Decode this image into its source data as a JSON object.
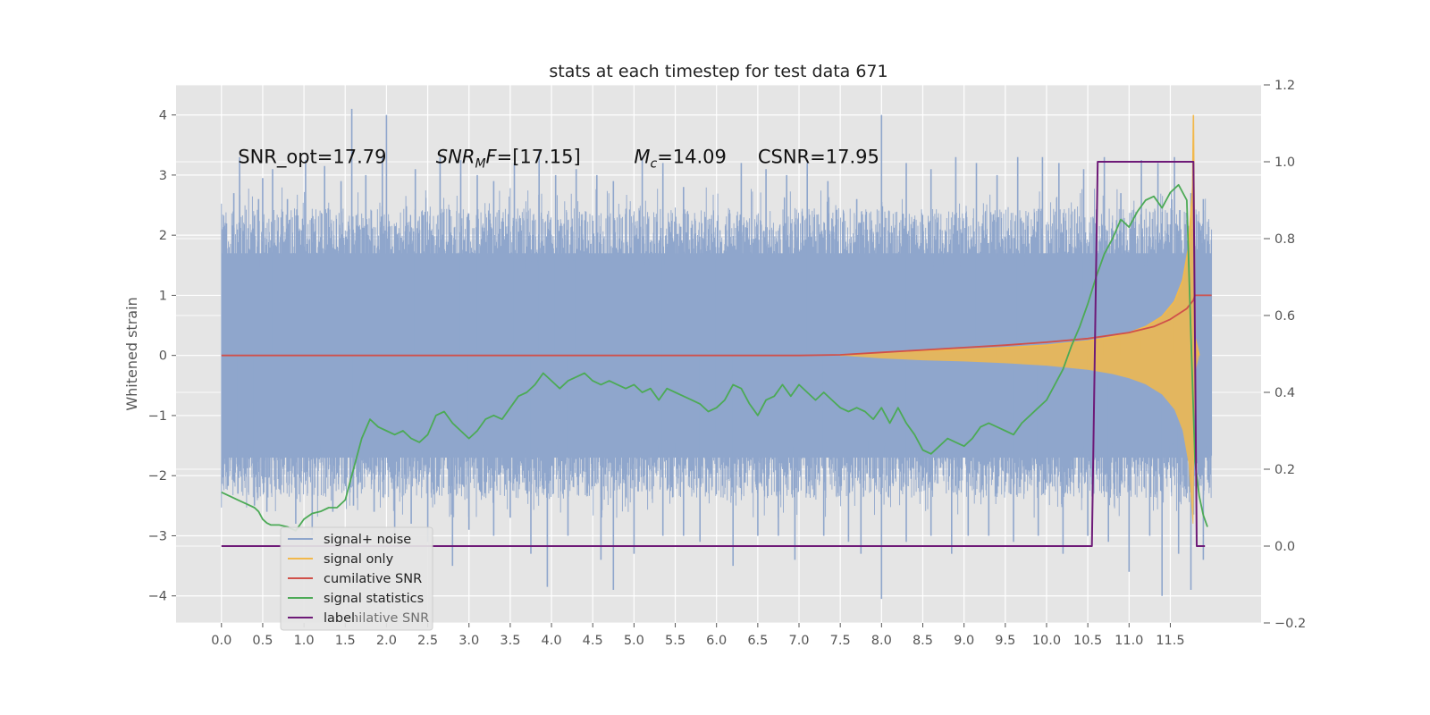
{
  "chart_data": {
    "type": "line",
    "title": "stats at each timestep for test data 671",
    "ylabel": "Whitened strain",
    "ylabel_right": "",
    "xlim": [
      -0.55,
      12.6
    ],
    "ylim": [
      -4.45,
      4.5
    ],
    "ylim_right": [
      -0.2,
      1.2
    ],
    "grid": true,
    "x_ticks": [
      0.0,
      0.5,
      1.0,
      1.5,
      2.0,
      2.5,
      3.0,
      3.5,
      4.0,
      4.5,
      5.0,
      5.5,
      6.0,
      6.5,
      7.0,
      7.5,
      8.0,
      8.5,
      9.0,
      9.5,
      10.0,
      10.5,
      11.0,
      11.5
    ],
    "x_tick_labels": [
      "0.0",
      "0.5",
      "1.0",
      "1.5",
      "2.0",
      "2.5",
      "3.0",
      "3.5",
      "4.0",
      "4.5",
      "5.0",
      "5.5",
      "6.0",
      "6.5",
      "7.0",
      "7.5",
      "8.0",
      "8.5",
      "9.0",
      "9.5",
      "10.0",
      "10.5",
      "11.0",
      "11.5"
    ],
    "y_ticks": [
      -4,
      -3,
      -2,
      -1,
      0,
      1,
      2,
      3,
      4
    ],
    "y_tick_labels": [
      "−4",
      "−3",
      "−2",
      "−1",
      "0",
      "1",
      "2",
      "3",
      "4"
    ],
    "y_right_ticks": [
      -0.2,
      0.0,
      0.2,
      0.4,
      0.6,
      0.8,
      1.0,
      1.2
    ],
    "y_right_tick_labels": [
      "−0.2",
      "0.0",
      "0.2",
      "0.4",
      "0.6",
      "0.8",
      "1.0",
      "1.2"
    ],
    "annotations": [
      {
        "text": "SNR_opt=17.79",
        "x": 0.2,
        "y": 3.3
      },
      {
        "text_main": "SNR",
        "text_sub": "M",
        "text_rest": "F=[17.15]",
        "x": 2.6,
        "y": 3.3
      },
      {
        "text_main": "M",
        "text_sub": "c",
        "text_rest": "=14.09",
        "x": 5.0,
        "y": 3.3
      },
      {
        "text": "CSNR=17.95",
        "x": 6.5,
        "y": 3.3
      }
    ],
    "legend": {
      "placement": "lower-left",
      "entries": [
        "signal+ noise",
        "signal only",
        "cumilative SNR",
        "signal statistics",
        "label"
      ],
      "ghost_text": "cumilative SNR"
    },
    "series": [
      {
        "name": "signal+ noise",
        "axis": "left",
        "color": "#8fa6cc",
        "style": "noise",
        "x_range": [
          0.0,
          12.0
        ],
        "typical_band": [
          -2.0,
          2.0
        ],
        "peaks": [
          [
            0.05,
            2.1
          ],
          [
            0.15,
            2.7
          ],
          [
            0.22,
            3.3
          ],
          [
            0.45,
            2.6
          ],
          [
            0.5,
            2.95
          ],
          [
            0.62,
            3.1
          ],
          [
            0.8,
            2.6
          ],
          [
            1.02,
            3.25
          ],
          [
            1.25,
            3.15
          ],
          [
            1.45,
            2.9
          ],
          [
            1.58,
            4.1
          ],
          [
            1.75,
            3.0
          ],
          [
            1.95,
            3.3
          ],
          [
            2.0,
            4.0
          ],
          [
            2.35,
            3.1
          ],
          [
            2.65,
            3.3
          ],
          [
            2.9,
            3.25
          ],
          [
            3.1,
            3.0
          ],
          [
            3.3,
            2.9
          ],
          [
            3.55,
            3.2
          ],
          [
            3.85,
            3.4
          ],
          [
            4.05,
            3.0
          ],
          [
            4.3,
            3.1
          ],
          [
            4.55,
            3.0
          ],
          [
            4.75,
            2.9
          ],
          [
            5.1,
            3.3
          ],
          [
            5.35,
            3.2
          ],
          [
            5.6,
            2.8
          ],
          [
            6.0,
            1.6
          ],
          [
            6.3,
            3.2
          ],
          [
            6.6,
            3.1
          ],
          [
            6.85,
            3.0
          ],
          [
            7.1,
            3.2
          ],
          [
            7.35,
            2.9
          ],
          [
            7.7,
            2.6
          ],
          [
            8.0,
            4.0
          ],
          [
            8.3,
            3.2
          ],
          [
            8.6,
            3.1
          ],
          [
            8.9,
            3.3
          ],
          [
            9.15,
            3.2
          ],
          [
            9.4,
            3.0
          ],
          [
            9.65,
            3.3
          ],
          [
            9.95,
            3.3
          ],
          [
            10.15,
            3.2
          ],
          [
            10.45,
            3.1
          ],
          [
            10.7,
            3.3
          ],
          [
            10.9,
            2.7
          ],
          [
            11.15,
            3.25
          ],
          [
            11.35,
            3.2
          ],
          [
            11.55,
            3.3
          ],
          [
            11.75,
            2.7
          ],
          [
            11.9,
            2.6
          ]
        ],
        "troughs": [
          [
            0.05,
            -1.8
          ],
          [
            0.2,
            -2.3
          ],
          [
            0.4,
            -2.5
          ],
          [
            0.55,
            -2.6
          ],
          [
            0.9,
            -2.8
          ],
          [
            1.1,
            -3.0
          ],
          [
            1.35,
            -2.6
          ],
          [
            1.6,
            -2.5
          ],
          [
            1.85,
            -2.6
          ],
          [
            2.1,
            -3.0
          ],
          [
            2.3,
            -2.8
          ],
          [
            2.5,
            -3.1
          ],
          [
            2.8,
            -3.5
          ],
          [
            3.0,
            -2.9
          ],
          [
            3.3,
            -3.0
          ],
          [
            3.5,
            -2.7
          ],
          [
            3.75,
            -3.3
          ],
          [
            3.95,
            -3.85
          ],
          [
            4.2,
            -3.0
          ],
          [
            4.6,
            -3.4
          ],
          [
            4.75,
            -3.9
          ],
          [
            5.0,
            -3.3
          ],
          [
            5.35,
            -3.0
          ],
          [
            5.6,
            -3.0
          ],
          [
            5.8,
            -3.1
          ],
          [
            6.0,
            -1.3
          ],
          [
            6.2,
            -3.5
          ],
          [
            6.5,
            -3.0
          ],
          [
            6.75,
            -3.0
          ],
          [
            6.95,
            -3.4
          ],
          [
            7.3,
            -3.0
          ],
          [
            7.6,
            -3.1
          ],
          [
            7.75,
            -3.3
          ],
          [
            8.0,
            -4.05
          ],
          [
            8.3,
            -3.1
          ],
          [
            8.6,
            -3.0
          ],
          [
            8.85,
            -3.3
          ],
          [
            9.05,
            -3.0
          ],
          [
            9.3,
            -3.0
          ],
          [
            9.6,
            -3.1
          ],
          [
            9.9,
            -3.0
          ],
          [
            10.2,
            -3.3
          ],
          [
            10.5,
            -3.0
          ],
          [
            10.75,
            -3.1
          ],
          [
            11.0,
            -3.6
          ],
          [
            11.25,
            -3.0
          ],
          [
            11.4,
            -4.0
          ],
          [
            11.6,
            -3.3
          ],
          [
            11.75,
            -3.9
          ],
          [
            11.9,
            -3.4
          ]
        ]
      },
      {
        "name": "signal only",
        "axis": "left",
        "color": "#f2b84b",
        "style": "chirp-envelope",
        "envelope": [
          [
            7.5,
            0.0
          ],
          [
            8.0,
            0.05
          ],
          [
            8.5,
            0.08
          ],
          [
            9.0,
            0.1
          ],
          [
            9.5,
            0.13
          ],
          [
            10.0,
            0.17
          ],
          [
            10.5,
            0.24
          ],
          [
            10.8,
            0.31
          ],
          [
            11.0,
            0.38
          ],
          [
            11.2,
            0.48
          ],
          [
            11.4,
            0.65
          ],
          [
            11.55,
            0.9
          ],
          [
            11.65,
            1.25
          ],
          [
            11.72,
            1.8
          ],
          [
            11.77,
            2.8
          ],
          [
            11.78,
            4.0
          ],
          [
            11.8,
            0.3
          ],
          [
            11.85,
            0.0
          ]
        ]
      },
      {
        "name": "cumilative SNR",
        "axis": "left",
        "color": "#d0504a",
        "x": [
          0.0,
          7.0,
          7.5,
          8.0,
          8.5,
          9.0,
          9.5,
          10.0,
          10.5,
          11.0,
          11.3,
          11.5,
          11.7,
          11.78,
          11.8,
          12.0
        ],
        "y": [
          0.0,
          0.0,
          0.01,
          0.05,
          0.09,
          0.13,
          0.17,
          0.22,
          0.28,
          0.38,
          0.48,
          0.6,
          0.78,
          0.92,
          1.0,
          1.0
        ]
      },
      {
        "name": "signal statistics",
        "axis": "right",
        "color": "#4caa56",
        "x": [
          0.0,
          0.1,
          0.2,
          0.3,
          0.4,
          0.45,
          0.5,
          0.55,
          0.6,
          0.7,
          0.8,
          0.9,
          1.0,
          1.1,
          1.2,
          1.3,
          1.4,
          1.5,
          1.6,
          1.7,
          1.8,
          1.9,
          2.0,
          2.1,
          2.2,
          2.3,
          2.4,
          2.5,
          2.6,
          2.7,
          2.8,
          2.9,
          3.0,
          3.1,
          3.2,
          3.3,
          3.4,
          3.5,
          3.6,
          3.7,
          3.8,
          3.9,
          4.0,
          4.1,
          4.2,
          4.3,
          4.4,
          4.5,
          4.6,
          4.7,
          4.8,
          4.9,
          5.0,
          5.1,
          5.2,
          5.3,
          5.4,
          5.5,
          5.6,
          5.7,
          5.8,
          5.9,
          6.0,
          6.1,
          6.2,
          6.3,
          6.4,
          6.5,
          6.6,
          6.7,
          6.8,
          6.9,
          7.0,
          7.1,
          7.2,
          7.3,
          7.4,
          7.5,
          7.6,
          7.7,
          7.8,
          7.9,
          8.0,
          8.1,
          8.2,
          8.3,
          8.4,
          8.5,
          8.6,
          8.7,
          8.8,
          8.9,
          9.0,
          9.1,
          9.2,
          9.3,
          9.4,
          9.5,
          9.6,
          9.7,
          9.8,
          9.9,
          10.0,
          10.1,
          10.2,
          10.3,
          10.4,
          10.5,
          10.6,
          10.7,
          10.8,
          10.9,
          11.0,
          11.1,
          11.2,
          11.3,
          11.4,
          11.5,
          11.6,
          11.7,
          11.75,
          11.8,
          11.85,
          11.9,
          11.95
        ],
        "y": [
          0.14,
          0.13,
          0.12,
          0.11,
          0.1,
          0.09,
          0.07,
          0.06,
          0.055,
          0.055,
          0.05,
          0.04,
          0.07,
          0.085,
          0.09,
          0.1,
          0.1,
          0.12,
          0.2,
          0.28,
          0.33,
          0.31,
          0.3,
          0.29,
          0.3,
          0.28,
          0.27,
          0.29,
          0.34,
          0.35,
          0.32,
          0.3,
          0.28,
          0.3,
          0.33,
          0.34,
          0.33,
          0.36,
          0.39,
          0.4,
          0.42,
          0.45,
          0.43,
          0.41,
          0.43,
          0.44,
          0.45,
          0.43,
          0.42,
          0.43,
          0.42,
          0.41,
          0.42,
          0.4,
          0.41,
          0.38,
          0.41,
          0.4,
          0.39,
          0.38,
          0.37,
          0.35,
          0.36,
          0.38,
          0.42,
          0.41,
          0.37,
          0.34,
          0.38,
          0.39,
          0.42,
          0.39,
          0.42,
          0.4,
          0.38,
          0.4,
          0.38,
          0.36,
          0.35,
          0.36,
          0.35,
          0.33,
          0.36,
          0.32,
          0.36,
          0.32,
          0.29,
          0.25,
          0.24,
          0.26,
          0.28,
          0.27,
          0.26,
          0.28,
          0.31,
          0.32,
          0.31,
          0.3,
          0.29,
          0.32,
          0.34,
          0.36,
          0.38,
          0.42,
          0.46,
          0.52,
          0.57,
          0.63,
          0.7,
          0.76,
          0.8,
          0.85,
          0.83,
          0.87,
          0.9,
          0.91,
          0.88,
          0.92,
          0.94,
          0.9,
          0.55,
          0.22,
          0.13,
          0.08,
          0.05
        ],
        "smooth_note": "visual line"
      },
      {
        "name": "label",
        "axis": "right",
        "color": "#6e1a78",
        "x": [
          0.0,
          10.55,
          10.62,
          11.78,
          11.82,
          11.92
        ],
        "y": [
          0.0,
          0.0,
          1.0,
          1.0,
          0.0,
          0.0
        ]
      }
    ]
  }
}
